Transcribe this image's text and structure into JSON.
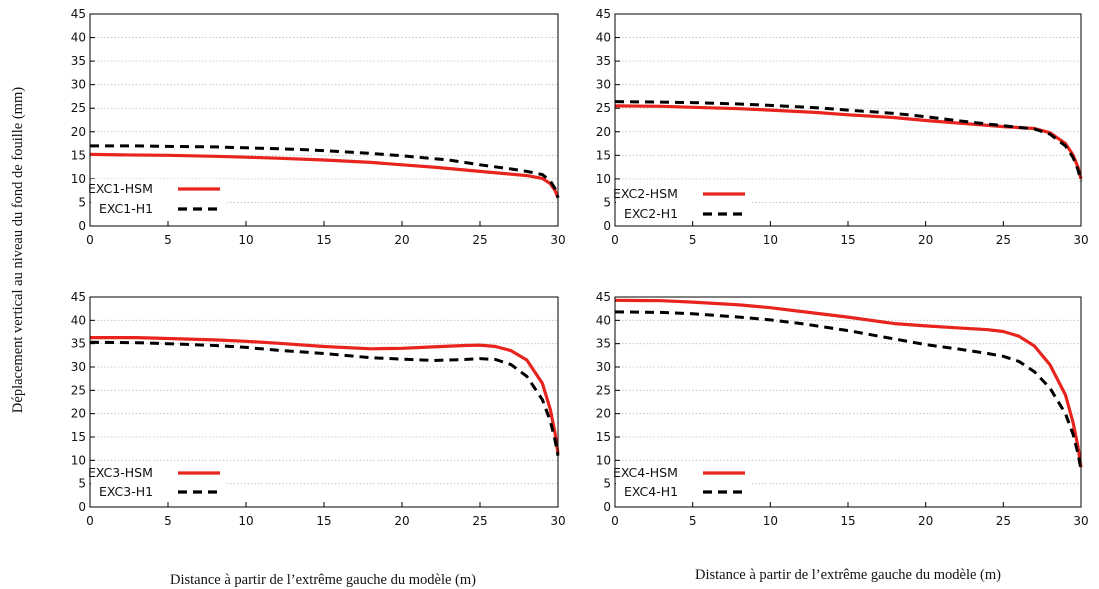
{
  "figure": {
    "ylabel": "Déplacement vertical au niveau du fond de fouille (mm)",
    "xlabel_left": "Distance à partir de l’extrême gauche du modèle (m)",
    "xlabel_right": "Distance à partir de l’extrême gauche du modèle (m)"
  },
  "chart_data": [
    {
      "type": "line",
      "xlim": [
        0,
        30
      ],
      "ylim": [
        0,
        45
      ],
      "x_ticks": [
        0,
        5,
        10,
        15,
        20,
        25,
        30
      ],
      "y_ticks": [
        0,
        5,
        10,
        15,
        20,
        25,
        30,
        35,
        40,
        45
      ],
      "grid": true,
      "legend_position": "bottom-left",
      "series": [
        {
          "name": "EXC1-HSM",
          "color": "#e8241f",
          "style": "solid",
          "points": [
            [
              0,
              15.2
            ],
            [
              2,
              15.1
            ],
            [
              5,
              15.0
            ],
            [
              8,
              14.8
            ],
            [
              10,
              14.6
            ],
            [
              12,
              14.4
            ],
            [
              15,
              14.0
            ],
            [
              18,
              13.5
            ],
            [
              20,
              13.0
            ],
            [
              22,
              12.5
            ],
            [
              25,
              11.6
            ],
            [
              27,
              11.0
            ],
            [
              28,
              10.7
            ],
            [
              29,
              10.1
            ],
            [
              29.5,
              9.0
            ],
            [
              29.8,
              7.6
            ],
            [
              30,
              6.0
            ]
          ]
        },
        {
          "name": "EXC1-H1",
          "color": "#000000",
          "style": "dashed",
          "points": [
            [
              0,
              17.0
            ],
            [
              3,
              17.0
            ],
            [
              5,
              16.9
            ],
            [
              8,
              16.8
            ],
            [
              10,
              16.6
            ],
            [
              13,
              16.3
            ],
            [
              15,
              16.0
            ],
            [
              18,
              15.4
            ],
            [
              20,
              14.9
            ],
            [
              23,
              14.0
            ],
            [
              25,
              13.0
            ],
            [
              27,
              12.1
            ],
            [
              28,
              11.6
            ],
            [
              29,
              10.9
            ],
            [
              29.5,
              9.6
            ],
            [
              29.8,
              8.0
            ],
            [
              30,
              6.0
            ]
          ]
        }
      ]
    },
    {
      "type": "line",
      "xlim": [
        0,
        30
      ],
      "ylim": [
        0,
        45
      ],
      "x_ticks": [
        0,
        5,
        10,
        15,
        20,
        25,
        30
      ],
      "y_ticks": [
        0,
        5,
        10,
        15,
        20,
        25,
        30,
        35,
        40,
        45
      ],
      "grid": true,
      "legend_position": "bottom-left",
      "series": [
        {
          "name": "EXC2-HSM",
          "color": "#e8241f",
          "style": "solid",
          "points": [
            [
              0,
              25.5
            ],
            [
              3,
              25.4
            ],
            [
              5,
              25.2
            ],
            [
              8,
              24.9
            ],
            [
              10,
              24.6
            ],
            [
              13,
              24.1
            ],
            [
              15,
              23.6
            ],
            [
              18,
              23.0
            ],
            [
              20,
              22.4
            ],
            [
              23,
              21.6
            ],
            [
              25,
              21.1
            ],
            [
              27,
              20.7
            ],
            [
              28,
              19.8
            ],
            [
              29,
              17.5
            ],
            [
              29.5,
              15.0
            ],
            [
              29.8,
              12.5
            ],
            [
              30,
              10.0
            ]
          ]
        },
        {
          "name": "EXC2-H1",
          "color": "#000000",
          "style": "dashed",
          "points": [
            [
              0,
              26.4
            ],
            [
              3,
              26.3
            ],
            [
              5,
              26.2
            ],
            [
              8,
              25.9
            ],
            [
              10,
              25.6
            ],
            [
              13,
              25.1
            ],
            [
              15,
              24.6
            ],
            [
              18,
              23.9
            ],
            [
              20,
              23.2
            ],
            [
              23,
              22.0
            ],
            [
              25,
              21.3
            ],
            [
              27,
              20.6
            ],
            [
              28,
              19.5
            ],
            [
              29,
              17.0
            ],
            [
              29.5,
              14.5
            ],
            [
              29.8,
              12.0
            ],
            [
              30,
              9.5
            ]
          ]
        }
      ]
    },
    {
      "type": "line",
      "xlim": [
        0,
        30
      ],
      "ylim": [
        0,
        45
      ],
      "x_ticks": [
        0,
        5,
        10,
        15,
        20,
        25,
        30
      ],
      "y_ticks": [
        0,
        5,
        10,
        15,
        20,
        25,
        30,
        35,
        40,
        45
      ],
      "grid": true,
      "legend_position": "bottom-left",
      "series": [
        {
          "name": "EXC3-HSM",
          "color": "#e8241f",
          "style": "solid",
          "points": [
            [
              0,
              36.3
            ],
            [
              3,
              36.3
            ],
            [
              5,
              36.1
            ],
            [
              8,
              35.8
            ],
            [
              10,
              35.5
            ],
            [
              12,
              35.1
            ],
            [
              15,
              34.4
            ],
            [
              18,
              33.9
            ],
            [
              20,
              34.0
            ],
            [
              22,
              34.3
            ],
            [
              24,
              34.6
            ],
            [
              25,
              34.7
            ],
            [
              26,
              34.4
            ],
            [
              27,
              33.5
            ],
            [
              28,
              31.5
            ],
            [
              29,
              26.5
            ],
            [
              29.5,
              21.0
            ],
            [
              29.8,
              16.0
            ],
            [
              30,
              11.5
            ]
          ]
        },
        {
          "name": "EXC3-H1",
          "color": "#000000",
          "style": "dashed",
          "points": [
            [
              0,
              35.3
            ],
            [
              3,
              35.2
            ],
            [
              5,
              35.0
            ],
            [
              8,
              34.6
            ],
            [
              10,
              34.2
            ],
            [
              12,
              33.6
            ],
            [
              15,
              32.9
            ],
            [
              18,
              32.0
            ],
            [
              20,
              31.7
            ],
            [
              22,
              31.4
            ],
            [
              24,
              31.6
            ],
            [
              25,
              31.8
            ],
            [
              26,
              31.6
            ],
            [
              27,
              30.5
            ],
            [
              28,
              28.0
            ],
            [
              29,
              23.0
            ],
            [
              29.5,
              18.5
            ],
            [
              29.8,
              14.5
            ],
            [
              30,
              11.0
            ]
          ]
        }
      ]
    },
    {
      "type": "line",
      "xlim": [
        0,
        30
      ],
      "ylim": [
        0,
        45
      ],
      "x_ticks": [
        0,
        5,
        10,
        15,
        20,
        25,
        30
      ],
      "y_ticks": [
        0,
        5,
        10,
        15,
        20,
        25,
        30,
        35,
        40,
        45
      ],
      "grid": true,
      "legend_position": "bottom-left",
      "series": [
        {
          "name": "EXC4-HSM",
          "color": "#e8241f",
          "style": "solid",
          "points": [
            [
              0,
              44.3
            ],
            [
              3,
              44.2
            ],
            [
              5,
              43.9
            ],
            [
              8,
              43.3
            ],
            [
              10,
              42.7
            ],
            [
              12,
              41.9
            ],
            [
              15,
              40.7
            ],
            [
              18,
              39.3
            ],
            [
              20,
              38.8
            ],
            [
              22,
              38.4
            ],
            [
              24,
              38.0
            ],
            [
              25,
              37.6
            ],
            [
              26,
              36.6
            ],
            [
              27,
              34.5
            ],
            [
              28,
              30.5
            ],
            [
              29,
              24.0
            ],
            [
              29.5,
              18.0
            ],
            [
              29.8,
              13.0
            ],
            [
              30,
              8.5
            ]
          ]
        },
        {
          "name": "EXC4-H1",
          "color": "#000000",
          "style": "dashed",
          "points": [
            [
              0,
              41.8
            ],
            [
              3,
              41.7
            ],
            [
              5,
              41.4
            ],
            [
              8,
              40.7
            ],
            [
              10,
              40.1
            ],
            [
              12,
              39.3
            ],
            [
              15,
              37.8
            ],
            [
              18,
              36.0
            ],
            [
              20,
              34.8
            ],
            [
              22,
              33.9
            ],
            [
              24,
              32.9
            ],
            [
              25,
              32.3
            ],
            [
              26,
              31.2
            ],
            [
              27,
              29.0
            ],
            [
              28,
              25.5
            ],
            [
              29,
              20.0
            ],
            [
              29.5,
              15.5
            ],
            [
              29.8,
              11.5
            ],
            [
              30,
              8.0
            ]
          ]
        }
      ]
    }
  ]
}
